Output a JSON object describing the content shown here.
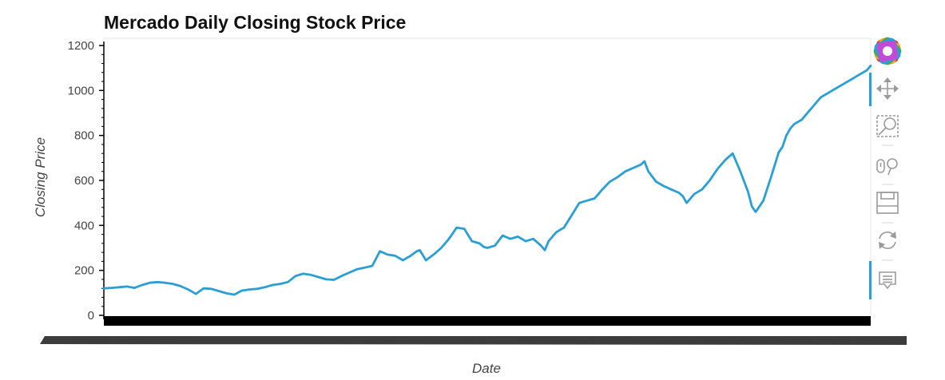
{
  "chart_data": {
    "type": "line",
    "title": "Mercado Daily Closing Stock Price",
    "xlabel": "Date",
    "ylabel": "Closing Price",
    "ylim": [
      0,
      1200
    ],
    "yticks": [
      0,
      200,
      400,
      600,
      800,
      1000,
      1200
    ],
    "grid": false,
    "color": "#2a9fd6",
    "series": [
      {
        "x": [
          0.0,
          0.01,
          0.02,
          0.03,
          0.04,
          0.05,
          0.06,
          0.07,
          0.08,
          0.09,
          0.1,
          0.11,
          0.12,
          0.13,
          0.14,
          0.15,
          0.16,
          0.17,
          0.18,
          0.19,
          0.2,
          0.21,
          0.22,
          0.23,
          0.24,
          0.25,
          0.26,
          0.27,
          0.28,
          0.29,
          0.3,
          0.31,
          0.32,
          0.33,
          0.34,
          0.35,
          0.36,
          0.37,
          0.38,
          0.39,
          0.4,
          0.408,
          0.412,
          0.42,
          0.43,
          0.44,
          0.45,
          0.455,
          0.46,
          0.47,
          0.48,
          0.49,
          0.495,
          0.5,
          0.51,
          0.52,
          0.53,
          0.54,
          0.55,
          0.56,
          0.57,
          0.575,
          0.58,
          0.585,
          0.59,
          0.6,
          0.61,
          0.62,
          0.63,
          0.64,
          0.65,
          0.66,
          0.67,
          0.68,
          0.69,
          0.7,
          0.705,
          0.71,
          0.72,
          0.73,
          0.74,
          0.75,
          0.755,
          0.76,
          0.77,
          0.78,
          0.79,
          0.8,
          0.81,
          0.82,
          0.83,
          0.84,
          0.845,
          0.85,
          0.86,
          0.87,
          0.88,
          0.885,
          0.89,
          0.895,
          0.9,
          0.91,
          0.915,
          0.92,
          0.925,
          0.93,
          0.935,
          0.94,
          0.945,
          0.95,
          0.955,
          0.96,
          0.965,
          0.97,
          0.975,
          0.98,
          0.985,
          0.99,
          0.995,
          1.0
        ],
        "y": [
          120,
          122,
          125,
          128,
          122,
          135,
          145,
          148,
          145,
          140,
          130,
          115,
          95,
          120,
          118,
          108,
          98,
          92,
          110,
          115,
          118,
          125,
          135,
          140,
          148,
          175,
          185,
          180,
          170,
          160,
          158,
          175,
          190,
          205,
          212,
          220,
          285,
          270,
          265,
          245,
          265,
          285,
          290,
          245,
          270,
          300,
          340,
          365,
          390,
          385,
          330,
          320,
          305,
          300,
          310,
          355,
          340,
          350,
          330,
          340,
          310,
          290,
          330,
          350,
          370,
          390,
          445,
          500,
          510,
          520,
          560,
          595,
          615,
          640,
          655,
          670,
          685,
          640,
          595,
          575,
          560,
          545,
          530,
          500,
          540,
          560,
          600,
          650,
          690,
          720,
          640,
          550,
          485,
          460,
          510,
          615,
          725,
          750,
          800,
          830,
          850,
          870,
          890,
          910,
          930,
          950,
          970,
          980,
          990,
          1000,
          1010,
          1020,
          1030,
          1040,
          1050,
          1060,
          1070,
          1080,
          1090,
          1110
        ]
      }
    ]
  },
  "toolbar": {
    "logo_icon": "bokeh-logo-icon",
    "tools": [
      "pan-icon",
      "box-zoom-icon",
      "wheel-zoom-icon",
      "save-icon",
      "reset-icon",
      "hover-icon"
    ]
  }
}
